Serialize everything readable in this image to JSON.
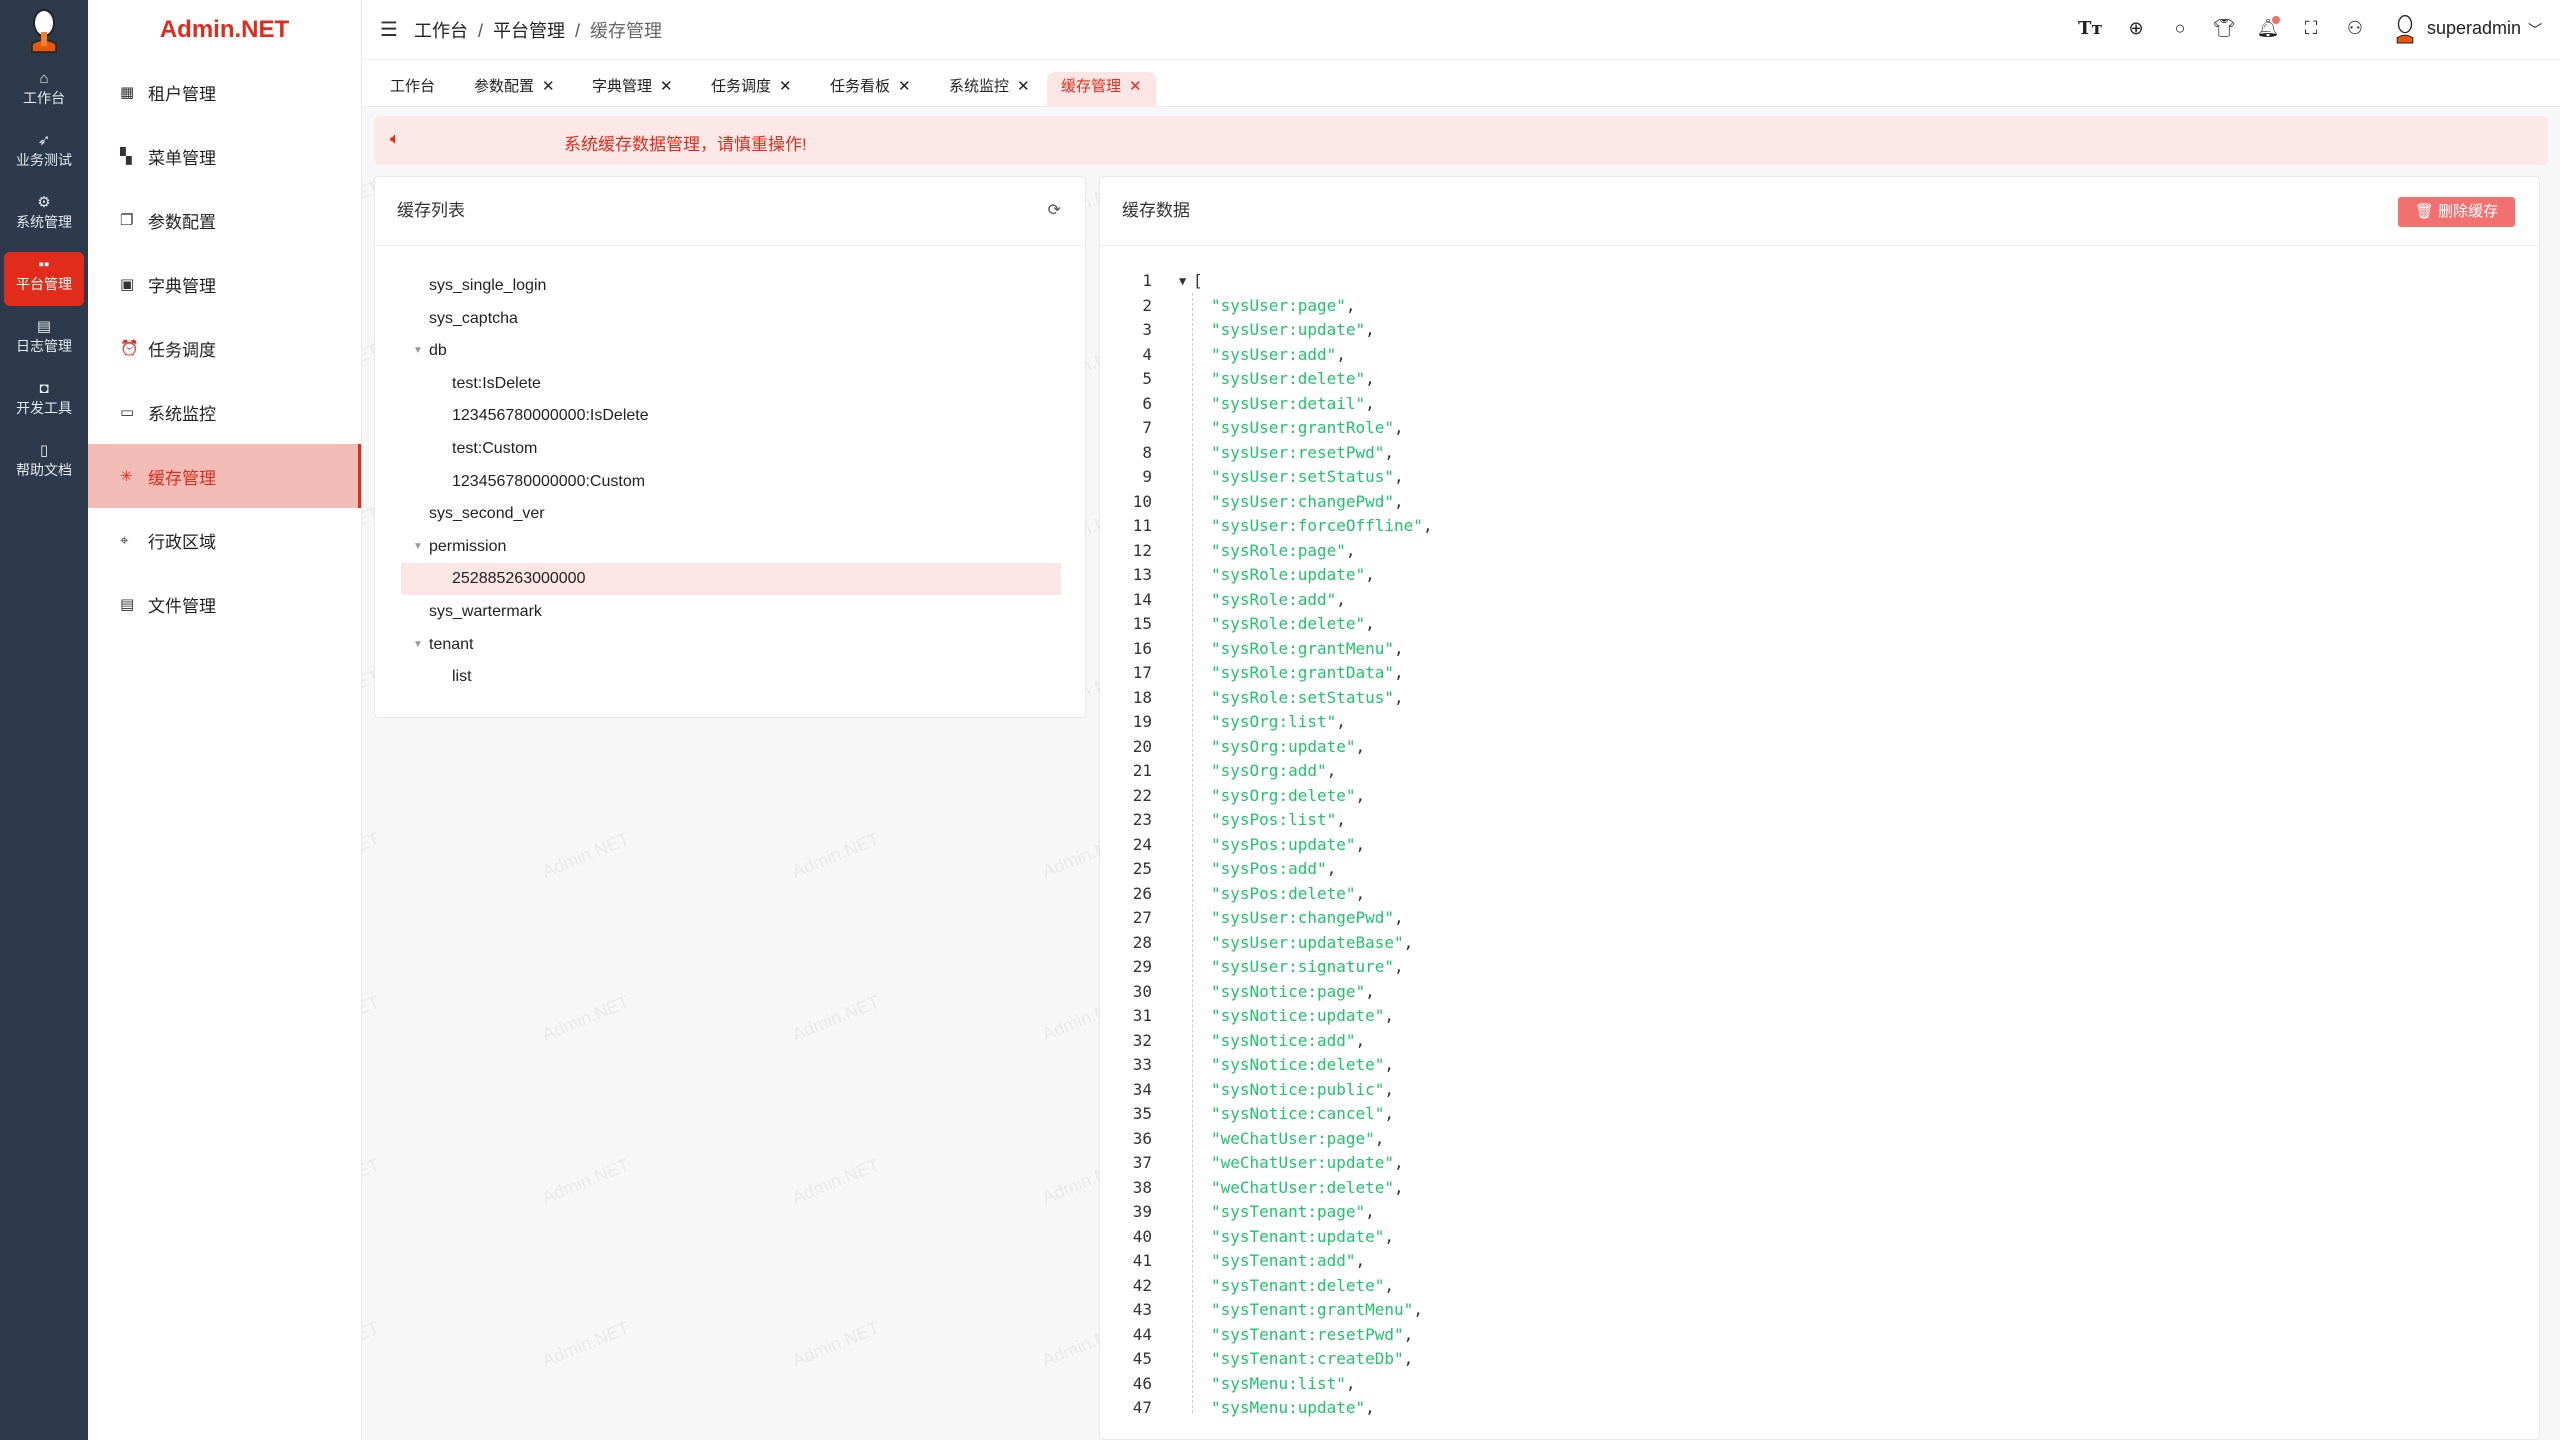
{
  "watermark": "Admin.NET",
  "rail": {
    "items": [
      {
        "label": "工作台",
        "icon": "home-icon",
        "glyph": "⌂"
      },
      {
        "label": "业务测试",
        "icon": "send-icon",
        "glyph": "➶"
      },
      {
        "label": "系统管理",
        "icon": "gear-icon",
        "glyph": "⚙"
      },
      {
        "label": "平台管理",
        "icon": "grid-icon",
        "glyph": "▪▪",
        "active": true
      },
      {
        "label": "日志管理",
        "icon": "document-icon",
        "glyph": "▤"
      },
      {
        "label": "开发工具",
        "icon": "chip-icon",
        "glyph": "◘"
      },
      {
        "label": "帮助文档",
        "icon": "book-icon",
        "glyph": "▯"
      }
    ]
  },
  "sidebar": {
    "brand": "Admin.NET",
    "items": [
      {
        "label": "租户管理",
        "icon": "building-icon",
        "glyph": "▦"
      },
      {
        "label": "菜单管理",
        "icon": "grid-icon",
        "glyph": "▚"
      },
      {
        "label": "参数配置",
        "icon": "copy-icon",
        "glyph": "❐"
      },
      {
        "label": "字典管理",
        "icon": "notebook-icon",
        "glyph": "▣"
      },
      {
        "label": "任务调度",
        "icon": "alarm-clock-icon",
        "glyph": "⏰"
      },
      {
        "label": "系统监控",
        "icon": "monitor-icon",
        "glyph": "▭"
      },
      {
        "label": "缓存管理",
        "icon": "loading-icon",
        "glyph": "✳",
        "active": true
      },
      {
        "label": "行政区域",
        "icon": "location-icon",
        "glyph": "⌖"
      },
      {
        "label": "文件管理",
        "icon": "file-icon",
        "glyph": "▤"
      }
    ]
  },
  "header": {
    "breadcrumb": [
      "工作台",
      "平台管理",
      "缓存管理"
    ],
    "separator": "/",
    "username": "superadmin",
    "icons": [
      "font-size-icon",
      "language-icon",
      "search-icon",
      "theme-icon",
      "bell-icon",
      "fullscreen-icon",
      "user-icon"
    ]
  },
  "tabs": [
    {
      "label": "工作台",
      "closable": false
    },
    {
      "label": "参数配置",
      "closable": true
    },
    {
      "label": "字典管理",
      "closable": true
    },
    {
      "label": "任务调度",
      "closable": true
    },
    {
      "label": "任务看板",
      "closable": true
    },
    {
      "label": "系统监控",
      "closable": true
    },
    {
      "label": "缓存管理",
      "closable": true,
      "active": true
    }
  ],
  "alert": {
    "text": "系统缓存数据管理，请慎重操作!"
  },
  "cache_list": {
    "title": "缓存列表",
    "tree": [
      {
        "label": "sys_single_login",
        "level": 0
      },
      {
        "label": "sys_captcha",
        "level": 0
      },
      {
        "label": "db",
        "level": 0,
        "expanded": true
      },
      {
        "label": "test:IsDelete",
        "level": 1
      },
      {
        "label": "123456780000000:IsDelete",
        "level": 1
      },
      {
        "label": "test:Custom",
        "level": 1
      },
      {
        "label": "123456780000000:Custom",
        "level": 1
      },
      {
        "label": "sys_second_ver",
        "level": 0
      },
      {
        "label": "permission",
        "level": 0,
        "expanded": true
      },
      {
        "label": "252885263000000",
        "level": 1,
        "selected": true
      },
      {
        "label": "sys_wartermark",
        "level": 0
      },
      {
        "label": "tenant",
        "level": 0,
        "expanded": true
      },
      {
        "label": "list",
        "level": 1
      }
    ]
  },
  "cache_data": {
    "title": "缓存数据",
    "delete_label": "删除缓存",
    "open_bracket": "[",
    "lines": [
      "sysUser:page",
      "sysUser:update",
      "sysUser:add",
      "sysUser:delete",
      "sysUser:detail",
      "sysUser:grantRole",
      "sysUser:resetPwd",
      "sysUser:setStatus",
      "sysUser:changePwd",
      "sysUser:forceOffline",
      "sysRole:page",
      "sysRole:update",
      "sysRole:add",
      "sysRole:delete",
      "sysRole:grantMenu",
      "sysRole:grantData",
      "sysRole:setStatus",
      "sysOrg:list",
      "sysOrg:update",
      "sysOrg:add",
      "sysOrg:delete",
      "sysPos:list",
      "sysPos:update",
      "sysPos:add",
      "sysPos:delete",
      "sysUser:changePwd",
      "sysUser:updateBase",
      "sysUser:signature",
      "sysNotice:page",
      "sysNotice:update",
      "sysNotice:add",
      "sysNotice:delete",
      "sysNotice:public",
      "sysNotice:cancel",
      "weChatUser:page",
      "weChatUser:update",
      "weChatUser:delete",
      "sysTenant:page",
      "sysTenant:update",
      "sysTenant:add",
      "sysTenant:delete",
      "sysTenant:grantMenu",
      "sysTenant:resetPwd",
      "sysTenant:createDb",
      "sysMenu:list",
      "sysMenu:update"
    ]
  },
  "colors": {
    "accent": "#e22c1b",
    "rail_bg": "#2d3a4b",
    "string": "#1ec46b",
    "danger_button": "#f37070",
    "alert_bg": "#fbe8e7"
  }
}
